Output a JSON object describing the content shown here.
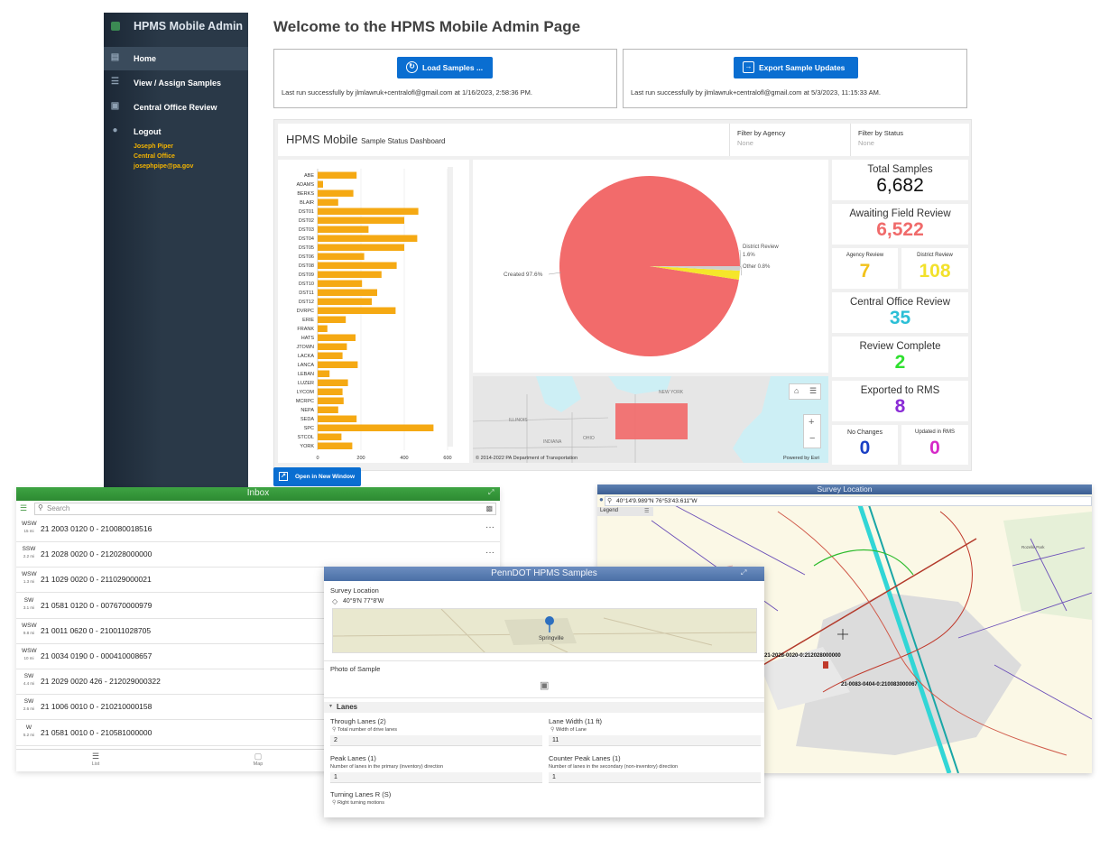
{
  "admin": {
    "brand": "HPMS Mobile Admin",
    "nav": [
      {
        "label": "Home",
        "icon": "document-icon"
      },
      {
        "label": "View / Assign Samples",
        "icon": "list-assign-icon"
      },
      {
        "label": "Central Office Review",
        "icon": "clipboard-icon"
      },
      {
        "label": "Logout",
        "icon": "user-icon"
      }
    ],
    "user": {
      "name": "Joseph Piper",
      "role": "Central Office",
      "email": "josephpipe@pa.gov"
    },
    "title": "Welcome to the HPMS Mobile Admin Page",
    "load": {
      "label": "Load Samples ...",
      "status": "Last run successfully by jlmlawruk+centralofl@gmail.com at 1/16/2023, 2:58:36 PM."
    },
    "export": {
      "label": "Export Sample Updates",
      "status": "Last run successfully by jlmlawruk+centralofl@gmail.com at 5/3/2023, 11:15:33 AM."
    },
    "open_window": "Open in New Window"
  },
  "dashboard": {
    "title": "HPMS Mobile",
    "subtitle": "Sample Status Dashboard",
    "filters": [
      {
        "label": "Filter by Agency",
        "value": "None"
      },
      {
        "label": "Filter by Status",
        "value": "None"
      }
    ],
    "kpis": {
      "total": {
        "label": "Total Samples",
        "value": "6,682",
        "color": "#111111"
      },
      "awaiting": {
        "label": "Awaiting Field Review",
        "value": "6,522",
        "color": "#f06b6b"
      },
      "agency": {
        "label": "Agency Review",
        "value": "7",
        "color": "#f2c21b"
      },
      "district": {
        "label": "District Review",
        "value": "108",
        "color": "#f2e12b"
      },
      "central": {
        "label": "Central Office Review",
        "value": "35",
        "color": "#2bbfd6"
      },
      "complete": {
        "label": "Review Complete",
        "value": "2",
        "color": "#2ee02e"
      },
      "exported": {
        "label": "Exported to RMS",
        "value": "8",
        "color": "#8a2bd6"
      },
      "nochange": {
        "label": "No Changes",
        "value": "0",
        "color": "#1a3fc4"
      },
      "updated": {
        "label": "Updated in RMS",
        "value": "0",
        "color": "#d629c8"
      }
    },
    "map_attribution": "© 2014-2022 PA Department of Transportation",
    "map_powered": "Powered by Esri",
    "map_places": [
      "NEW YORK",
      "ILLINOIS",
      "INDIANA",
      "OHIO"
    ]
  },
  "chart_data": [
    {
      "type": "bar",
      "orientation": "horizontal",
      "categories": [
        "ABE",
        "ADAMS",
        "BERKS",
        "BLAIR",
        "DST01",
        "DST02",
        "DST03",
        "DST04",
        "DST05",
        "DST06",
        "DST08",
        "DST09",
        "DST10",
        "DST11",
        "DST12",
        "DVRPC",
        "ERIE",
        "FRANK",
        "HATS",
        "JTOWN",
        "LACKA",
        "LANCA",
        "LEBAN",
        "LUZER",
        "LYCOM",
        "MCRPC",
        "NEPA",
        "SEDA",
        "SPC",
        "STCOL",
        "YORK"
      ],
      "values": [
        180,
        25,
        165,
        95,
        465,
        400,
        235,
        460,
        400,
        215,
        365,
        295,
        205,
        275,
        250,
        360,
        130,
        45,
        175,
        135,
        115,
        185,
        55,
        140,
        115,
        120,
        95,
        180,
        535,
        110,
        160
      ],
      "xticks": [
        "0",
        "200",
        "400",
        "600"
      ],
      "xlim": [
        0,
        600
      ],
      "bar_color": "#f5a913"
    },
    {
      "type": "pie",
      "slices": [
        {
          "label": "Created",
          "value": 97.6,
          "display": "Created 97.6%",
          "color": "#f26b6b"
        },
        {
          "label": "District Review",
          "value": 1.6,
          "display": "District Review 1.6%",
          "color": "#f5e62a"
        },
        {
          "label": "Other",
          "value": 0.8,
          "display": "Other 0.8%",
          "color": "#cfcfcf"
        }
      ]
    }
  ],
  "inbox": {
    "title": "Inbox",
    "search_placeholder": "Search",
    "rows": [
      {
        "dir": "WSW",
        "dist": "15 mi",
        "code": "21  2003  0120 0 - 210080018516"
      },
      {
        "dir": "SSW",
        "dist": "2.2 mi",
        "code": "21  2028  0020 0 - 212028000000"
      },
      {
        "dir": "WSW",
        "dist": "1.3 mi",
        "code": "21  1029  0020 0 - 211029000021"
      },
      {
        "dir": "SW",
        "dist": "3.1 mi",
        "code": "21  0581  0120 0 - 007670000979"
      },
      {
        "dir": "WSW",
        "dist": "9.8 mi",
        "code": "21  0011  0620 0 - 210011028705"
      },
      {
        "dir": "WSW",
        "dist": "10 mi",
        "code": "21  0034  0190 0 - 000410008657"
      },
      {
        "dir": "SW",
        "dist": "4.4 mi",
        "code": "21  2029  0020 426 - 212029000322"
      },
      {
        "dir": "SW",
        "dist": "2.6 mi",
        "code": "21  1006  0010 0 - 210210000158"
      },
      {
        "dir": "W",
        "dist": "5.2 mi",
        "code": "21  0581  0010 0 - 210581000000"
      }
    ],
    "tabs": [
      "List",
      "Map"
    ],
    "more": "···"
  },
  "survey": {
    "title": "Survey Location",
    "coords": "40°14'9.989\"N 76°53'43.611\"W",
    "legend": "Legend",
    "labels": [
      "21-2028-0020-0:212028000000",
      "21-0083-0404-0:210083000067"
    ],
    "area": "Rozelle Park"
  },
  "form": {
    "title": "PennDOT HPMS Samples",
    "survey_location": "Survey Location",
    "coords": "40°9'N 77°8'W",
    "map_place": "Springville",
    "photo": "Photo of Sample",
    "lanes_section": "Lanes",
    "through": {
      "label": "Through Lanes (2)",
      "hint": "Total number of drive lanes",
      "value": "2"
    },
    "width": {
      "label": "Lane Width (11 ft)",
      "hint": "Width of Lane",
      "value": "11"
    },
    "peak": {
      "label": "Peak Lanes (1)",
      "hint": "Number of lanes in the primary (inventory) direction",
      "value": "1"
    },
    "counter": {
      "label": "Counter Peak Lanes (1)",
      "hint": "Number of lanes in the secondary (non-inventory) direction",
      "value": "1"
    },
    "turning": {
      "label": "Turning Lanes R (S)",
      "hint": "Right turning motions"
    }
  }
}
